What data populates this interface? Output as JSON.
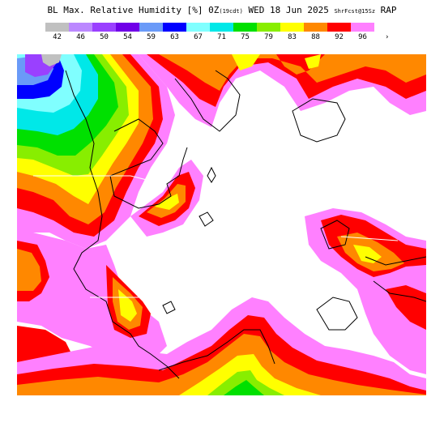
{
  "header": {
    "title_main": "BL Max. Relative Humidity [%] 0Z",
    "title_local": "(19cdt)",
    "title_date": " WED 18 Jun 2025 ",
    "title_model": "ShrFcst@15Sz",
    "title_source": " RAP"
  },
  "legend": {
    "more_symbol": "›",
    "items": [
      {
        "label": "42",
        "color": "#c0c0c0"
      },
      {
        "label": "46",
        "color": "#bb88ff"
      },
      {
        "label": "50",
        "color": "#9a40ff"
      },
      {
        "label": "54",
        "color": "#7000e8"
      },
      {
        "label": "59",
        "color": "#6a9af8"
      },
      {
        "label": "63",
        "color": "#0000ff"
      },
      {
        "label": "67",
        "color": "#80ffff"
      },
      {
        "label": "71",
        "color": "#00e8e8"
      },
      {
        "label": "75",
        "color": "#00e000"
      },
      {
        "label": "79",
        "color": "#88ee00"
      },
      {
        "label": "83",
        "color": "#ffff00"
      },
      {
        "label": "88",
        "color": "#ff8800"
      },
      {
        "label": "92",
        "color": "#ff0000"
      },
      {
        "label": "96",
        "color": "#ff80ff"
      }
    ]
  },
  "map": {
    "background_color": "#ffffff",
    "boundary_color": "#000000",
    "border_color": "#ffffff"
  }
}
